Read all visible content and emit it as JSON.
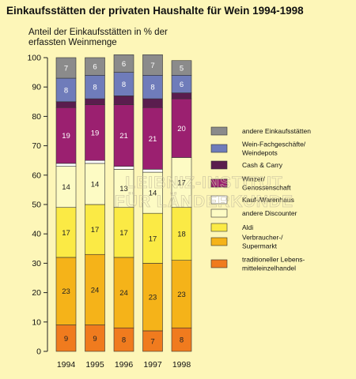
{
  "chart_data": {
    "type": "bar",
    "stacked": true,
    "title": "Einkaufsstätten der privaten Haushalte für Wein 1994-1998",
    "ylabel_lines": [
      "Anteil der Einkaufsstätten in % der",
      "erfassten Weinmenge"
    ],
    "categories": [
      "1994",
      "1995",
      "1996",
      "1997",
      "1998"
    ],
    "ylim": [
      0,
      100
    ],
    "yticks": [
      0,
      10,
      20,
      30,
      40,
      50,
      60,
      70,
      80,
      90,
      100
    ],
    "legend_position": "right",
    "series": [
      {
        "name": "traditioneller Lebens-\nmitteleinzelhandel",
        "color": "#f07b1e",
        "values": [
          9,
          9,
          8,
          7,
          8
        ],
        "labeled": [
          true,
          true,
          true,
          true,
          true
        ]
      },
      {
        "name": "Verbraucher-/\nSupermarkt",
        "color": "#f5b319",
        "values": [
          23,
          24,
          24,
          23,
          23
        ],
        "labeled": [
          true,
          true,
          true,
          true,
          true
        ]
      },
      {
        "name": "Aldi",
        "color": "#fbea45",
        "values": [
          17,
          17,
          17,
          17,
          18
        ],
        "labeled": [
          true,
          true,
          true,
          true,
          true
        ]
      },
      {
        "name": "andere Discounter",
        "color": "#fdfbc4",
        "values": [
          14,
          14,
          13,
          14,
          17
        ],
        "labeled": [
          true,
          true,
          true,
          true,
          true
        ]
      },
      {
        "name": "Kauf-/Warenhaus",
        "color": "#ffffff",
        "values": [
          1,
          1,
          1,
          1,
          0
        ],
        "labeled": [
          false,
          false,
          false,
          false,
          false
        ]
      },
      {
        "name": "Winzer/\nGenossenschaft",
        "color": "#9b2070",
        "values": [
          19,
          19,
          21,
          21,
          20
        ],
        "labeled": [
          true,
          true,
          true,
          true,
          true
        ]
      },
      {
        "name": "Cash & Carry",
        "color": "#5a1d4e",
        "values": [
          2,
          2,
          3,
          3,
          2
        ],
        "labeled": [
          false,
          false,
          false,
          false,
          false
        ]
      },
      {
        "name": "Wein-Fachgeschäfte/\nWeindepots",
        "color": "#6f7cba",
        "values": [
          8,
          8,
          8,
          8,
          6
        ],
        "labeled": [
          true,
          true,
          true,
          true,
          true
        ]
      },
      {
        "name": "andere Einkaufsstätten",
        "color": "#8b8b8b",
        "values": [
          7,
          6,
          6,
          7,
          5
        ],
        "labeled": [
          true,
          true,
          true,
          true,
          true
        ]
      }
    ]
  },
  "watermark": {
    "line1": "LEIBNIZ-INSTITUT",
    "line2": "FÜR LÄNDERKUNDE"
  }
}
